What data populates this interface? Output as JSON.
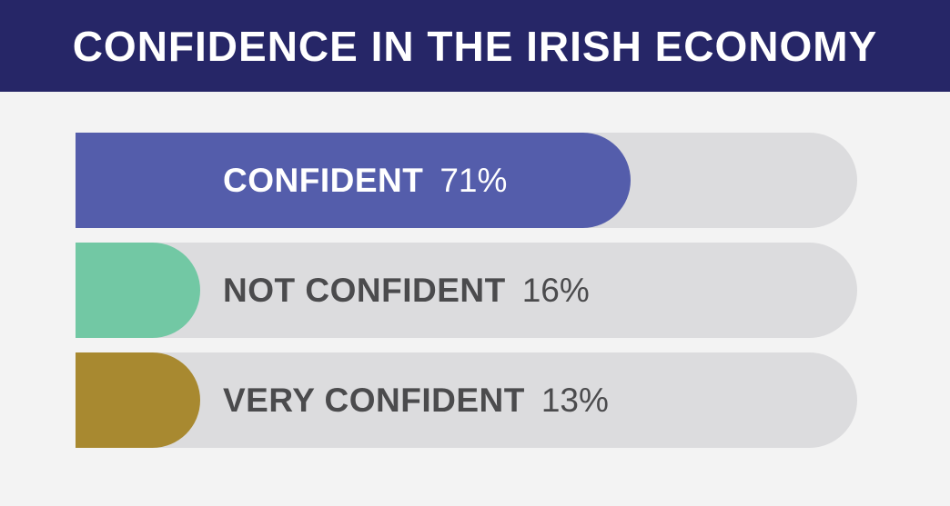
{
  "title": "CONFIDENCE IN THE IRISH ECONOMY",
  "colors": {
    "header_bg": "#262667",
    "track": "#dcdcde",
    "background": "#f3f3f3"
  },
  "chart_data": {
    "type": "bar",
    "orientation": "horizontal",
    "title": "CONFIDENCE IN THE IRISH ECONOMY",
    "categories": [
      "CONFIDENT",
      "NOT CONFIDENT",
      "VERY CONFIDENT"
    ],
    "values": [
      71,
      16,
      13
    ],
    "value_labels": [
      "71%",
      "16%",
      "13%"
    ],
    "unit": "%",
    "xlim": [
      0,
      100
    ],
    "colors": [
      "#545dab",
      "#72c8a4",
      "#a88930"
    ],
    "label_colors": [
      "#ffffff",
      "#4b4b4d",
      "#4b4b4d"
    ]
  }
}
